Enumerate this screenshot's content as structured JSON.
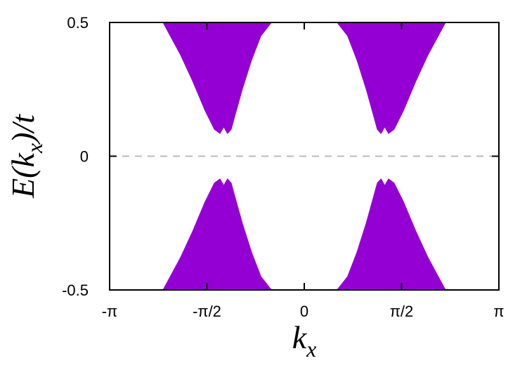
{
  "chart_data": {
    "type": "area",
    "xlabel": "k_x",
    "ylabel": "E(k_x)/t",
    "xlim": [
      -3.14159,
      3.14159
    ],
    "ylim": [
      -0.5,
      0.5
    ],
    "x_ticks": [
      {
        "value": -3.14159,
        "label": "-π"
      },
      {
        "value": -1.5708,
        "label": "-π/2"
      },
      {
        "value": 0,
        "label": "0"
      },
      {
        "value": 1.5708,
        "label": "π/2"
      },
      {
        "value": 3.14159,
        "label": "π"
      }
    ],
    "y_ticks": [
      {
        "value": -0.5,
        "label": "-0.5"
      },
      {
        "value": 0,
        "label": "0"
      },
      {
        "value": 0.5,
        "label": "0.5"
      }
    ],
    "reference_line": {
      "y": 0,
      "style": "dashed",
      "color": "#bbbbbb"
    },
    "fill_color": "#9400d3",
    "grid": false,
    "legend": "none",
    "series": [
      {
        "band": "upper",
        "x": [
          -2.28,
          -2.0,
          -1.8,
          -1.6,
          -1.45,
          -1.36,
          -1.3,
          -1.24,
          -1.18,
          -1.12,
          -1.0,
          -0.85,
          -0.7,
          -0.53
        ],
        "y_min": [
          0.5,
          0.38,
          0.28,
          0.17,
          0.1,
          0.085,
          0.11,
          0.085,
          0.1,
          0.15,
          0.25,
          0.36,
          0.45,
          0.5
        ],
        "y_max": [
          0.5,
          0.5,
          0.5,
          0.5,
          0.5,
          0.5,
          0.5,
          0.5,
          0.5,
          0.5,
          0.5,
          0.5,
          0.5,
          0.5
        ]
      },
      {
        "band": "upper",
        "x": [
          0.53,
          0.7,
          0.85,
          1.0,
          1.12,
          1.18,
          1.24,
          1.3,
          1.36,
          1.45,
          1.6,
          1.8,
          2.0,
          2.28
        ],
        "y_min": [
          0.5,
          0.45,
          0.36,
          0.25,
          0.15,
          0.1,
          0.085,
          0.11,
          0.085,
          0.1,
          0.17,
          0.28,
          0.38,
          0.5
        ],
        "y_max": [
          0.5,
          0.5,
          0.5,
          0.5,
          0.5,
          0.5,
          0.5,
          0.5,
          0.5,
          0.5,
          0.5,
          0.5,
          0.5,
          0.5
        ]
      },
      {
        "band": "lower",
        "x": [
          -2.28,
          -2.0,
          -1.8,
          -1.6,
          -1.45,
          -1.36,
          -1.3,
          -1.24,
          -1.18,
          -1.12,
          -1.0,
          -0.85,
          -0.7,
          -0.53
        ],
        "y_min": [
          -0.5,
          -0.5,
          -0.5,
          -0.5,
          -0.5,
          -0.5,
          -0.5,
          -0.5,
          -0.5,
          -0.5,
          -0.5,
          -0.5,
          -0.5,
          -0.5
        ],
        "y_max": [
          -0.5,
          -0.38,
          -0.28,
          -0.17,
          -0.1,
          -0.085,
          -0.11,
          -0.085,
          -0.1,
          -0.15,
          -0.25,
          -0.36,
          -0.45,
          -0.5
        ]
      },
      {
        "band": "lower",
        "x": [
          0.53,
          0.7,
          0.85,
          1.0,
          1.12,
          1.18,
          1.24,
          1.3,
          1.36,
          1.45,
          1.6,
          1.8,
          2.0,
          2.28
        ],
        "y_min": [
          -0.5,
          -0.5,
          -0.5,
          -0.5,
          -0.5,
          -0.5,
          -0.5,
          -0.5,
          -0.5,
          -0.5,
          -0.5,
          -0.5,
          -0.5,
          -0.5
        ],
        "y_max": [
          -0.5,
          -0.45,
          -0.36,
          -0.25,
          -0.15,
          -0.1,
          -0.085,
          -0.11,
          -0.085,
          -0.1,
          -0.17,
          -0.28,
          -0.38,
          -0.5
        ]
      }
    ]
  }
}
